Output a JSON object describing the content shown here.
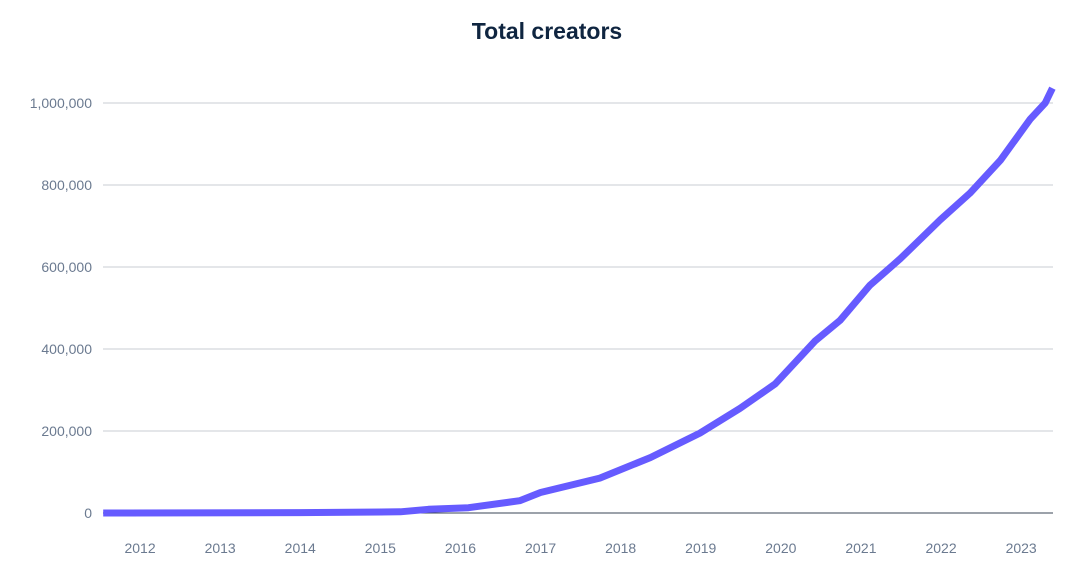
{
  "chart_data": {
    "type": "line",
    "title": "Total creators",
    "xlabel": "",
    "ylabel": "",
    "xlim": [
      2012.0,
      2023.9
    ],
    "ylim": [
      0,
      1000000
    ],
    "grid": true,
    "legend": "none",
    "x_ticks": [
      2012,
      2013,
      2014,
      2015,
      2016,
      2017,
      2018,
      2019,
      2020,
      2021,
      2022,
      2023
    ],
    "x_tick_labels": [
      "2012",
      "2013",
      "2014",
      "2015",
      "2016",
      "2017",
      "2018",
      "2019",
      "2020",
      "2021",
      "2022",
      "2023"
    ],
    "y_ticks": [
      0,
      200000,
      400000,
      600000,
      800000,
      1000000
    ],
    "y_tick_labels": [
      "0",
      "200,000",
      "400,000",
      "600,000",
      "800,000",
      "1,000,000"
    ],
    "series": [
      {
        "name": "Total creators",
        "color": "#665bff",
        "x": [
          2012.04,
          2014.5,
          2015.75,
          2016.1,
          2016.6,
          2017.24,
          2017.5,
          2018.24,
          2018.87,
          2019.49,
          2019.99,
          2020.43,
          2020.93,
          2021.24,
          2021.61,
          2021.99,
          2022.49,
          2022.86,
          2023.24,
          2023.61,
          2023.8,
          2023.89
        ],
        "values": [
          0,
          1000,
          3000,
          9000,
          13000,
          30000,
          50000,
          85000,
          135000,
          195000,
          255000,
          315000,
          420000,
          470000,
          555000,
          620000,
          715000,
          780000,
          860000,
          960000,
          1000000,
          1036000
        ]
      }
    ],
    "colors": {
      "title": "#0f2540",
      "tick": "#6b7a90",
      "grid": "#c8ccd3",
      "baseline": "#3a4556"
    }
  }
}
